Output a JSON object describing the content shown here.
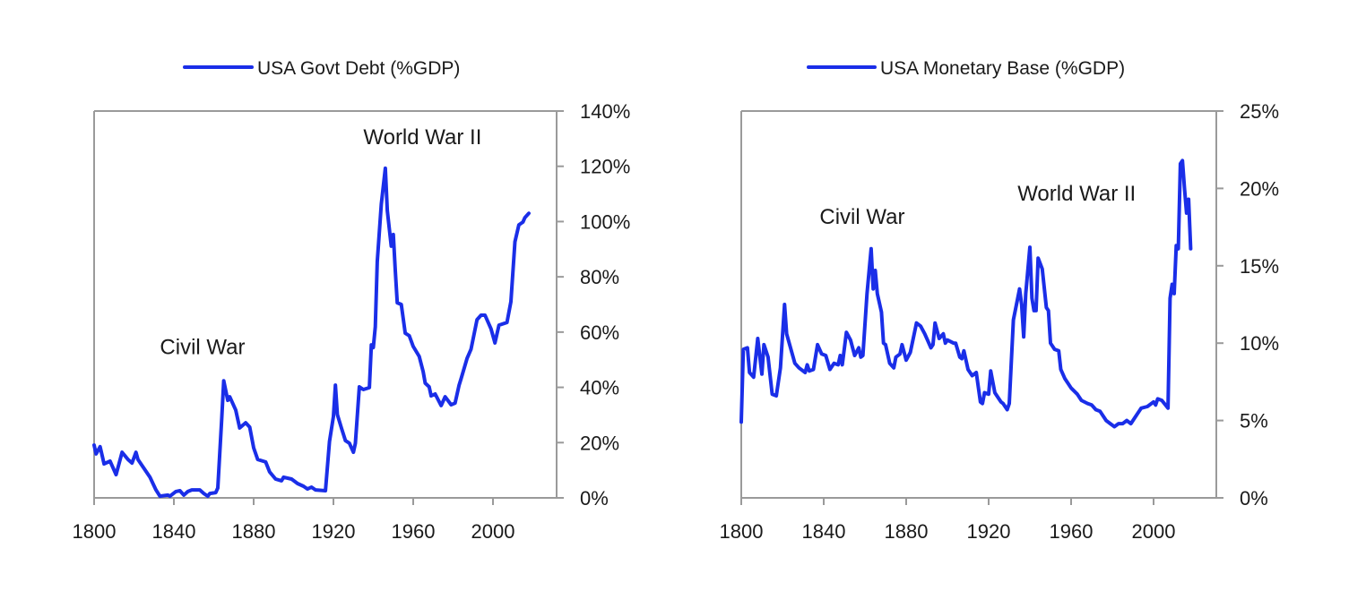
{
  "chart_data": [
    {
      "type": "line",
      "title": "",
      "xlabel": "",
      "ylabel": "",
      "legend": {
        "position": "top-center",
        "entries": [
          "USA Govt Debt (%GDP)"
        ]
      },
      "color": "#1a2ee8",
      "xlim": [
        1800,
        2032
      ],
      "ylim": [
        0,
        140
      ],
      "y_axis_side": "right",
      "grid": false,
      "x_ticks": [
        1800,
        1840,
        1880,
        1920,
        1960,
        2000
      ],
      "x_tick_labels": [
        "1800",
        "1840",
        "1880",
        "1920",
        "1960",
        "2000"
      ],
      "y_ticks": [
        0,
        20,
        40,
        60,
        80,
        100,
        120,
        140
      ],
      "y_tick_labels": [
        "0%",
        "20%",
        "40%",
        "60%",
        "80%",
        "100%",
        "120%",
        "140%"
      ],
      "annotations": [
        {
          "text": "World War II",
          "x": 1935,
          "y": 128
        },
        {
          "text": "Civil War",
          "x": 1833,
          "y": 52
        }
      ],
      "series": [
        {
          "name": "USA Govt Debt (%GDP)",
          "x": [
            1800,
            1801,
            1803,
            1805,
            1808,
            1809,
            1811,
            1814,
            1817,
            1819,
            1821,
            1822,
            1825,
            1828,
            1831,
            1833,
            1837,
            1838,
            1841,
            1843,
            1845,
            1847,
            1849,
            1853,
            1855,
            1857,
            1858,
            1861,
            1862,
            1864,
            1865,
            1867,
            1868,
            1871,
            1873,
            1876,
            1878,
            1880,
            1882,
            1886,
            1888,
            1891,
            1894,
            1895,
            1899,
            1902,
            1905,
            1907,
            1909,
            1911,
            1916,
            1918,
            1920,
            1921,
            1922,
            1924,
            1926,
            1928,
            1930,
            1931,
            1933,
            1935,
            1938,
            1939,
            1940,
            1941,
            1942,
            1944,
            1946,
            1947,
            1949,
            1950,
            1951,
            1952,
            1954,
            1956,
            1958,
            1960,
            1963,
            1965,
            1966,
            1968,
            1969,
            1971,
            1974,
            1976,
            1979,
            1981,
            1983,
            1984,
            1987,
            1989,
            1992,
            1994,
            1996,
            1999,
            2001,
            2003,
            2007,
            2009,
            2011,
            2013,
            2015,
            2016,
            2018
          ],
          "values": [
            19.1,
            15.9,
            18.5,
            12.3,
            13.3,
            11.7,
            8.4,
            16.5,
            13.9,
            12.6,
            16.5,
            13.9,
            10.7,
            7.5,
            2.9,
            0.6,
            1.0,
            0.6,
            2.3,
            2.6,
            1.0,
            2.3,
            2.9,
            2.9,
            1.6,
            0.6,
            1.6,
            1.9,
            3.6,
            28.8,
            42.4,
            35.3,
            36.6,
            31.8,
            25.3,
            27.2,
            25.6,
            18.1,
            13.9,
            13.0,
            9.4,
            6.8,
            6.2,
            7.5,
            6.8,
            5.2,
            4.2,
            3.2,
            3.9,
            2.9,
            2.6,
            20.4,
            29.5,
            40.8,
            30.1,
            25.3,
            20.7,
            19.8,
            16.5,
            19.8,
            40.2,
            39.2,
            39.9,
            55.4,
            54.4,
            61.9,
            85.5,
            106.3,
            119.3,
            104.0,
            91.1,
            95.3,
            82.3,
            70.6,
            70.0,
            59.6,
            58.7,
            54.8,
            51.2,
            45.7,
            41.5,
            40.2,
            36.9,
            37.6,
            33.4,
            36.6,
            33.7,
            34.3,
            40.8,
            43.1,
            50.5,
            53.8,
            64.5,
            66.1,
            66.1,
            61.2,
            56.1,
            62.5,
            63.5,
            71.0,
            92.7,
            98.8,
            99.8,
            101.4,
            103.0
          ]
        }
      ]
    },
    {
      "type": "line",
      "title": "",
      "xlabel": "",
      "ylabel": "",
      "legend": {
        "position": "top-center",
        "entries": [
          "USA Monetary Base (%GDP)"
        ]
      },
      "color": "#1a2ee8",
      "xlim": [
        1800,
        2031
      ],
      "ylim": [
        0,
        25
      ],
      "y_axis_side": "right",
      "grid": false,
      "x_ticks": [
        1800,
        1840,
        1880,
        1920,
        1960,
        2000
      ],
      "x_tick_labels": [
        "1800",
        "1840",
        "1880",
        "1920",
        "1960",
        "2000"
      ],
      "y_ticks": [
        0,
        5,
        10,
        15,
        20,
        25
      ],
      "y_tick_labels": [
        "0%",
        "5%",
        "10%",
        "15%",
        "20%",
        "25%"
      ],
      "annotations": [
        {
          "text": "World War II",
          "x": 1934,
          "y": 19.2
        },
        {
          "text": "Civil War",
          "x": 1838,
          "y": 17.7
        }
      ],
      "series": [
        {
          "name": "USA Monetary Base (%GDP)",
          "x": [
            1800,
            1801,
            1803,
            1804,
            1806,
            1808,
            1810,
            1811,
            1813,
            1815,
            1817,
            1819,
            1821,
            1822,
            1826,
            1828,
            1831,
            1832,
            1833,
            1835,
            1837,
            1839,
            1841,
            1843,
            1845,
            1847,
            1848,
            1849,
            1851,
            1853,
            1855,
            1857,
            1858,
            1859,
            1861,
            1863,
            1864,
            1865,
            1866,
            1868,
            1869,
            1870,
            1872,
            1874,
            1875,
            1877,
            1878,
            1880,
            1882,
            1885,
            1887,
            1889,
            1892,
            1893,
            1894,
            1896,
            1898,
            1899,
            1900,
            1903,
            1904,
            1906,
            1907,
            1908,
            1910,
            1912,
            1914,
            1916,
            1917,
            1918,
            1920,
            1921,
            1923,
            1924,
            1926,
            1927,
            1929,
            1930,
            1932,
            1935,
            1936,
            1937,
            1938,
            1940,
            1941,
            1942,
            1943,
            1944,
            1946,
            1948,
            1949,
            1950,
            1952,
            1954,
            1955,
            1957,
            1960,
            1963,
            1965,
            1968,
            1970,
            1972,
            1974,
            1977,
            1979,
            1981,
            1983,
            1985,
            1987,
            1989,
            1991,
            1994,
            1997,
            2000,
            2001,
            2002,
            2004,
            2007,
            2008,
            2009,
            2010,
            2011,
            2012,
            2013,
            2014,
            2015,
            2016,
            2017,
            2018
          ],
          "values": [
            4.9,
            9.6,
            9.7,
            8.1,
            7.8,
            10.3,
            8.0,
            9.9,
            9.1,
            6.7,
            6.6,
            8.4,
            12.5,
            10.6,
            8.7,
            8.4,
            8.1,
            8.6,
            8.2,
            8.3,
            9.9,
            9.3,
            9.2,
            8.3,
            8.7,
            8.6,
            9.2,
            8.6,
            10.7,
            10.2,
            9.2,
            9.7,
            9.1,
            9.2,
            13.2,
            16.1,
            13.5,
            14.7,
            13.2,
            12.0,
            10.0,
            9.9,
            8.7,
            8.4,
            9.1,
            9.3,
            9.9,
            8.9,
            9.4,
            11.3,
            11.1,
            10.6,
            9.7,
            9.9,
            11.3,
            10.3,
            10.6,
            10.0,
            10.2,
            10.0,
            10.0,
            9.1,
            9.0,
            9.5,
            8.3,
            7.9,
            8.1,
            6.2,
            6.1,
            6.8,
            6.7,
            8.2,
            6.8,
            6.6,
            6.2,
            6.1,
            5.7,
            6.1,
            11.5,
            13.5,
            12.5,
            10.4,
            13.2,
            16.2,
            12.9,
            12.1,
            12.1,
            15.5,
            14.8,
            12.3,
            12.1,
            10.0,
            9.6,
            9.5,
            8.3,
            7.7,
            7.1,
            6.7,
            6.3,
            6.1,
            6.0,
            5.7,
            5.6,
            5.0,
            4.8,
            4.6,
            4.8,
            4.8,
            5.0,
            4.8,
            5.2,
            5.8,
            5.9,
            6.2,
            6.0,
            6.4,
            6.3,
            5.8,
            12.9,
            13.8,
            13.2,
            16.3,
            16.1,
            21.6,
            21.8,
            20.0,
            18.4,
            19.3,
            16.1
          ]
        }
      ]
    }
  ]
}
